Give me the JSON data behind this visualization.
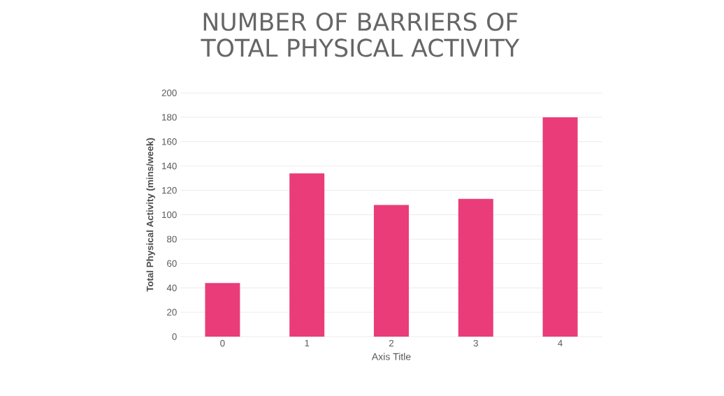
{
  "chart_data": {
    "type": "bar",
    "title": "NUMBER OF BARRIERS OF TOTAL PHYSICAL ACTIVITY",
    "xlabel": "Axis Title",
    "ylabel": "Total Physical Activity (mins/week)",
    "categories": [
      "0",
      "1",
      "2",
      "3",
      "4"
    ],
    "values": [
      44,
      134,
      108,
      113,
      180
    ],
    "color": "#ea3c79",
    "ylim": [
      0,
      200
    ],
    "yticks": [
      0,
      20,
      40,
      60,
      80,
      100,
      120,
      140,
      160,
      180,
      200
    ],
    "grid": "y"
  }
}
